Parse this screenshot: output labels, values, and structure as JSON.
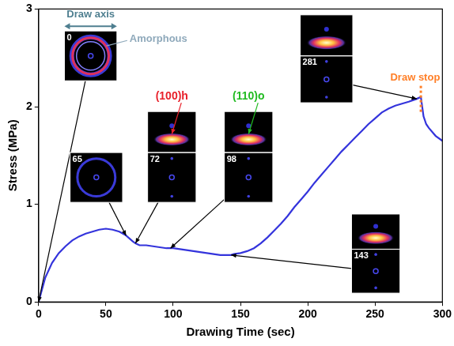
{
  "chart_data": {
    "type": "line",
    "x_label": "Drawing Time (sec)",
    "y_label": "Stress (MPa)",
    "x": [
      0,
      5,
      10,
      15,
      20,
      25,
      30,
      35,
      40,
      45,
      50,
      55,
      60,
      65,
      70,
      72,
      75,
      80,
      85,
      90,
      95,
      98,
      100,
      105,
      110,
      115,
      120,
      125,
      130,
      135,
      140,
      143,
      145,
      150,
      155,
      160,
      165,
      170,
      175,
      180,
      185,
      190,
      195,
      200,
      205,
      210,
      215,
      220,
      225,
      230,
      235,
      240,
      245,
      250,
      255,
      260,
      265,
      270,
      275,
      281,
      284,
      286,
      288,
      290,
      295,
      300
    ],
    "values": [
      0,
      0.25,
      0.4,
      0.5,
      0.57,
      0.63,
      0.67,
      0.7,
      0.72,
      0.74,
      0.75,
      0.74,
      0.72,
      0.68,
      0.62,
      0.6,
      0.58,
      0.58,
      0.57,
      0.56,
      0.55,
      0.55,
      0.55,
      0.54,
      0.53,
      0.52,
      0.51,
      0.5,
      0.49,
      0.48,
      0.48,
      0.48,
      0.49,
      0.5,
      0.52,
      0.55,
      0.6,
      0.66,
      0.73,
      0.8,
      0.88,
      0.97,
      1.05,
      1.13,
      1.22,
      1.3,
      1.38,
      1.46,
      1.54,
      1.61,
      1.68,
      1.75,
      1.82,
      1.88,
      1.94,
      1.98,
      2.01,
      2.03,
      2.05,
      2.08,
      2.1,
      1.9,
      1.82,
      1.78,
      1.7,
      1.65
    ],
    "color": "#3434dc",
    "marker": "none",
    "line_style": "solid",
    "xlim": [
      0,
      300
    ],
    "xticks": [
      0,
      50,
      100,
      150,
      200,
      250,
      300
    ],
    "ylim": [
      0,
      3
    ],
    "yticks": [
      0,
      1,
      2,
      3
    ],
    "grid": false,
    "annotations": {
      "draw_axis": "Draw axis",
      "amorphous": "Amorphous",
      "reflections": [
        {
          "label": "(100)h",
          "color": "#e8202a",
          "frame": 72
        },
        {
          "label": "(110)o",
          "color": "#22bb22",
          "frame": 98
        }
      ],
      "draw_stop": {
        "label": "Draw stop",
        "time": 284,
        "color": "#ff7f27"
      }
    },
    "patterns": [
      {
        "time": 0
      },
      {
        "time": 65
      },
      {
        "time": 72
      },
      {
        "time": 98
      },
      {
        "time": 143
      },
      {
        "time": 281
      }
    ]
  }
}
